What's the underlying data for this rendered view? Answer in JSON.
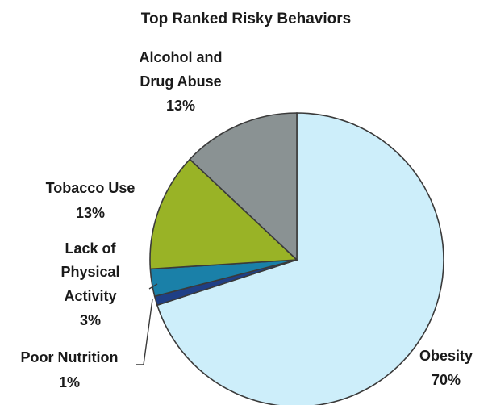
{
  "chart_data": {
    "type": "pie",
    "title": "Top Ranked Risky Behaviors",
    "slices": [
      {
        "label": "Obesity",
        "value": 70,
        "display": "70%",
        "color": "#cdeefa"
      },
      {
        "label": "Poor Nutrition",
        "value": 1,
        "display": "1%",
        "color": "#1f3f86"
      },
      {
        "label": "Lack of Physical Activity",
        "value": 3,
        "display": "3%",
        "color": "#1a80a8"
      },
      {
        "label": "Tobacco Use",
        "value": 13,
        "display": "13%",
        "color": "#99b326"
      },
      {
        "label": "Alcohol and Drug Abuse",
        "value": 13,
        "display": "13%",
        "color": "#8a9293"
      }
    ],
    "legend": "none",
    "data_labels": "outside"
  }
}
